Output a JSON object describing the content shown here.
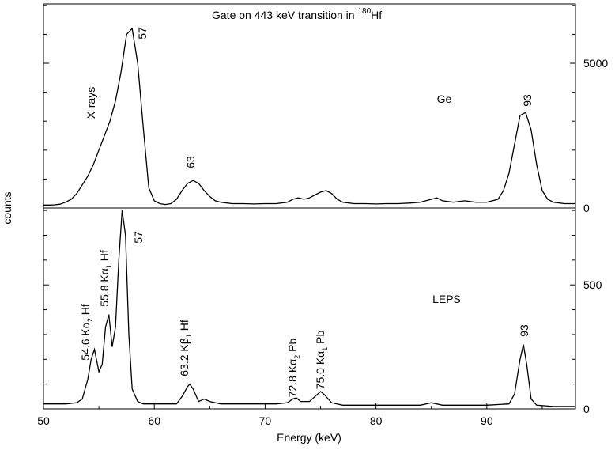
{
  "chart_data": [
    {
      "type": "line",
      "title": "Gate on 443 keV transition in",
      "title_sup": "180",
      "title_end": "Hf",
      "ylabel": "counts",
      "x": [
        50,
        50.5,
        51,
        51.5,
        52,
        52.5,
        53,
        53.5,
        54,
        54.5,
        55,
        55.5,
        56,
        56.5,
        57,
        57.5,
        58,
        58.5,
        59,
        59.5,
        60,
        60.5,
        61,
        61.5,
        62,
        62.5,
        63,
        63.5,
        64,
        64.5,
        65,
        65.5,
        66,
        67,
        68,
        69,
        70,
        71,
        72,
        72.5,
        73,
        73.5,
        74,
        74.5,
        75,
        75.5,
        76,
        76.5,
        77,
        78,
        79,
        80,
        81,
        82,
        83,
        84,
        85,
        85.5,
        86,
        87,
        88,
        89,
        90,
        91,
        91.5,
        92,
        92.5,
        93,
        93.5,
        94,
        94.5,
        95,
        95.5,
        96,
        97,
        98
      ],
      "values": [
        100,
        100,
        110,
        130,
        200,
        300,
        500,
        800,
        1100,
        1500,
        2000,
        2500,
        3000,
        3700,
        4700,
        6000,
        6200,
        5000,
        2800,
        700,
        250,
        150,
        120,
        150,
        300,
        600,
        850,
        950,
        850,
        600,
        400,
        250,
        200,
        150,
        150,
        140,
        150,
        150,
        200,
        300,
        350,
        300,
        350,
        450,
        550,
        600,
        500,
        300,
        200,
        150,
        150,
        140,
        150,
        150,
        170,
        200,
        300,
        350,
        250,
        200,
        250,
        200,
        200,
        300,
        600,
        1200,
        2200,
        3200,
        3300,
        2700,
        1500,
        600,
        300,
        200,
        150,
        150
      ],
      "color": "#000000",
      "xlim": [
        50,
        98
      ],
      "ylim": [
        0,
        7050
      ],
      "yticks": [
        0,
        5000
      ],
      "yminorticks": [
        1000,
        2000,
        3000,
        4000,
        6000,
        7000
      ],
      "label": "Ge",
      "annotations": [
        {
          "text": "57"
        },
        {
          "text": "X-rays"
        },
        {
          "text": "63"
        },
        {
          "text": "93"
        }
      ]
    },
    {
      "type": "line",
      "xlabel": "Energy (keV)",
      "label": "LEPS",
      "x": [
        50,
        51,
        52,
        53,
        53.5,
        54,
        54.3,
        54.6,
        55,
        55.3,
        55.6,
        55.9,
        56.2,
        56.5,
        56.8,
        57.1,
        57.4,
        57.7,
        58,
        58.5,
        59,
        60,
        61,
        62,
        62.5,
        63,
        63.2,
        63.5,
        64,
        64.5,
        65,
        66,
        68,
        70,
        71,
        72,
        72.5,
        72.8,
        73.2,
        74,
        74.5,
        75,
        75.3,
        76,
        77,
        80,
        84,
        85,
        86,
        88,
        90,
        92,
        92.5,
        93,
        93.3,
        93.6,
        94,
        94.5,
        96,
        98
      ],
      "values": [
        20,
        20,
        20,
        25,
        40,
        120,
        200,
        240,
        150,
        180,
        330,
        380,
        250,
        330,
        600,
        800,
        700,
        300,
        80,
        30,
        20,
        20,
        20,
        20,
        50,
        90,
        100,
        80,
        30,
        40,
        30,
        20,
        20,
        20,
        20,
        25,
        40,
        45,
        30,
        30,
        50,
        70,
        60,
        25,
        15,
        15,
        15,
        25,
        15,
        15,
        15,
        20,
        60,
        200,
        260,
        180,
        40,
        15,
        10,
        10
      ],
      "color": "#000000",
      "xlim": [
        50,
        98
      ],
      "xticks": [
        50,
        60,
        70,
        80,
        90
      ],
      "xminorticks": [
        55,
        65,
        75,
        85,
        95
      ],
      "ylim": [
        0,
        810
      ],
      "yticks": [
        0,
        500
      ],
      "yminorticks": [
        100,
        200,
        300,
        400,
        600,
        700,
        800
      ],
      "annotations": [
        {
          "text": "57"
        },
        {
          "text": "54.6  Kα",
          "sub": "2",
          "after": " Hf"
        },
        {
          "text": "55.8  Kα",
          "sub": "1",
          "after": " Hf"
        },
        {
          "text": "63.2  Kβ",
          "sub": "1",
          "after": " Hf"
        },
        {
          "text": "72.8  Kα",
          "sub": "2",
          "after": " Pb"
        },
        {
          "text": "75.0  Kα",
          "sub": "1",
          "after": " Pb"
        },
        {
          "text": "93"
        }
      ]
    }
  ]
}
